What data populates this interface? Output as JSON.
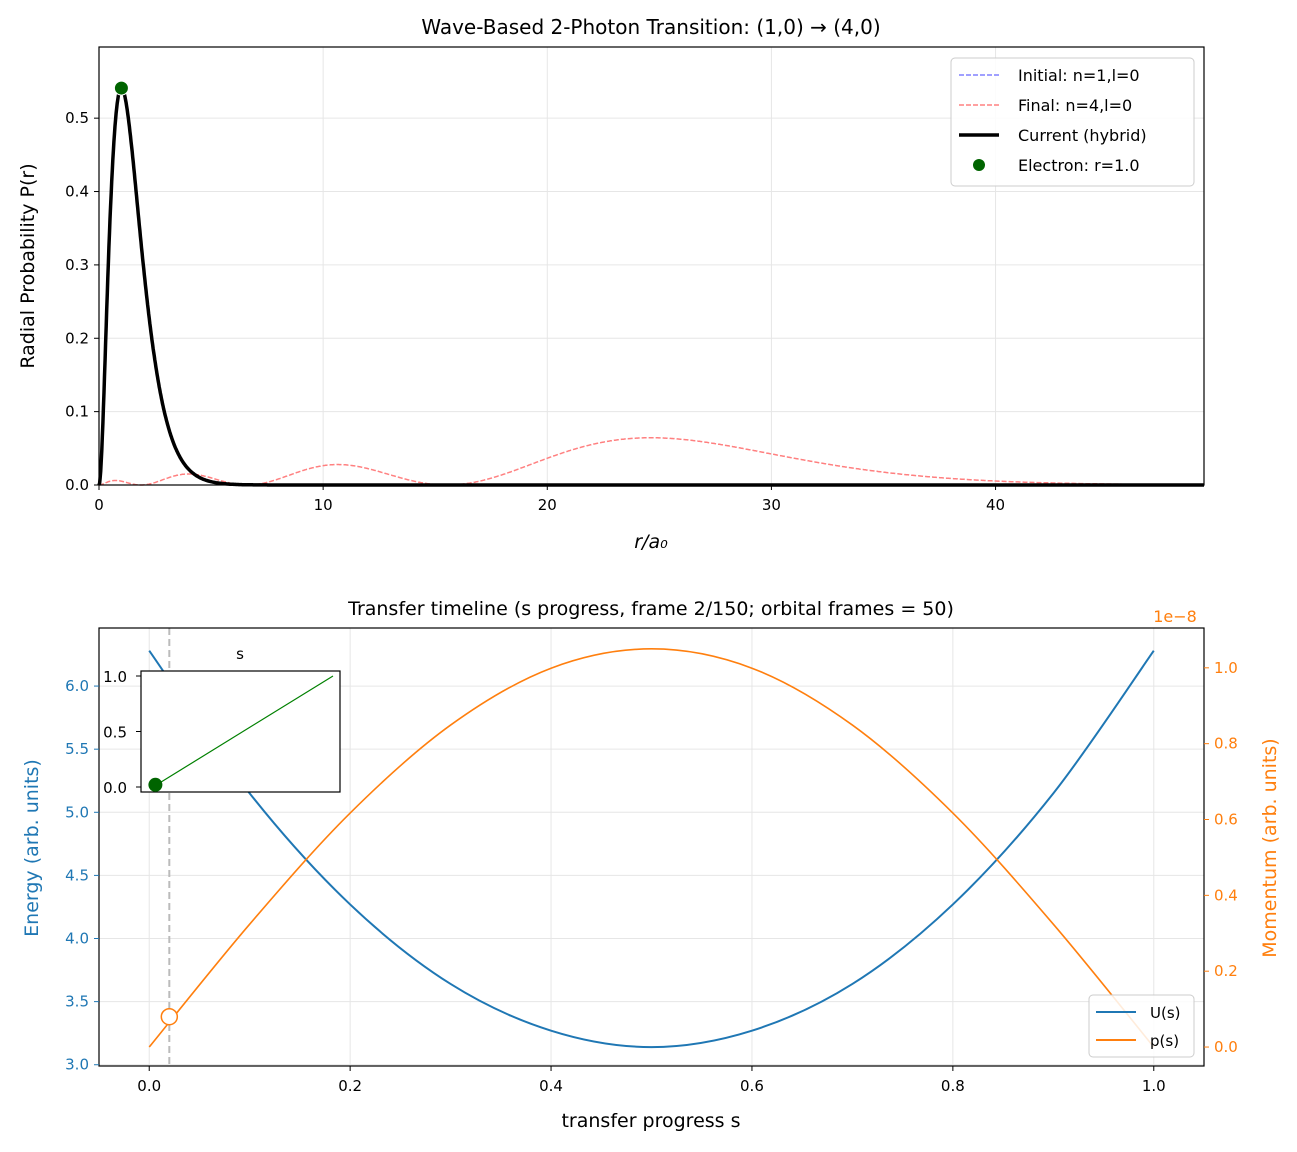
{
  "chart_data": [
    {
      "type": "line",
      "title": "Wave-Based 2-Photon Transition: (1,0) → (4,0)",
      "xlabel": "r/a₀",
      "ylabel": "Radial Probability P(r)",
      "xlim": [
        0,
        49.3
      ],
      "ylim": [
        0,
        0.597
      ],
      "xticks": [
        "0",
        "10",
        "20",
        "30",
        "40"
      ],
      "yticks": [
        "0.0",
        "0.1",
        "0.2",
        "0.3",
        "0.4",
        "0.5"
      ],
      "grid": true,
      "legend_placement": "top-right",
      "series": [
        {
          "name": "Initial: n=1,l=0",
          "n": 1,
          "l": 0,
          "style": "dashed",
          "color": "#8080ff"
        },
        {
          "name": "Final: n=4,l=0",
          "n": 4,
          "l": 0,
          "style": "dashed",
          "color": "#ff8080"
        },
        {
          "name": "Current (hybrid)",
          "n": 1,
          "l": 0,
          "style": "solid",
          "color": "#000000"
        }
      ],
      "marker": {
        "name": "Electron: r=1.0",
        "r": 1.0,
        "P": 0.541,
        "color": "#006400"
      }
    },
    {
      "type": "line",
      "title": "Transfer timeline (s progress, frame 2/150; orbital frames = 50)",
      "xlabel": "transfer progress s",
      "ylabel_left": "Energy (arb. units)",
      "ylabel_right": "Momentum (arb. units)",
      "right_scale_label": "1e−8",
      "xlim": [
        -0.05,
        1.05
      ],
      "ylim_left": [
        2.99,
        6.46
      ],
      "ylim_right": [
        -0.05,
        1.105
      ],
      "xticks": [
        "0.0",
        "0.2",
        "0.4",
        "0.6",
        "0.8",
        "1.0"
      ],
      "yticks_left": [
        "3.0",
        "3.5",
        "4.0",
        "4.5",
        "5.0",
        "5.5",
        "6.0"
      ],
      "yticks_right": [
        "0.0",
        "0.2",
        "0.4",
        "0.6",
        "0.8",
        "1.0"
      ],
      "grid": true,
      "legend_placement": "bottom-right",
      "series": [
        {
          "name": "U(s)",
          "color": "#1f77b4",
          "s": [
            0,
            0.1,
            0.2,
            0.3,
            0.4,
            0.5,
            0.6,
            0.7,
            0.8,
            0.9,
            1.0
          ],
          "values": [
            6.28,
            5.15,
            4.27,
            3.64,
            3.27,
            3.14,
            3.27,
            3.64,
            4.27,
            5.15,
            6.28
          ]
        },
        {
          "name": "p(s)",
          "color": "#ff7f0e",
          "s": [
            0,
            0.1,
            0.2,
            0.3,
            0.4,
            0.5,
            0.6,
            0.7,
            0.8,
            0.9,
            1.0
          ],
          "values": [
            0,
            0.324,
            0.617,
            0.849,
            0.999,
            1.05,
            0.999,
            0.849,
            0.617,
            0.324,
            0
          ]
        }
      ],
      "current_s": 0.02,
      "current_p": 0.08,
      "inset": {
        "title": "s",
        "yticks": [
          "0.0",
          "0.5",
          "1.0"
        ],
        "frames": 150,
        "current_frame": 2,
        "s_start": 0,
        "s_end": 1
      }
    }
  ]
}
